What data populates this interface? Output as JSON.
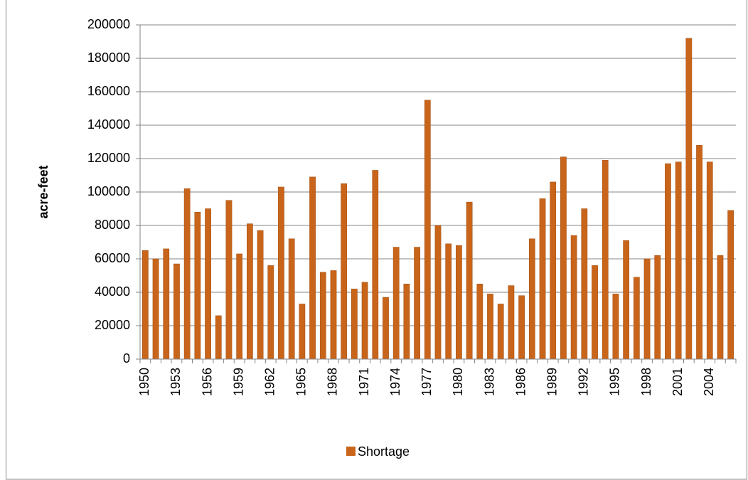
{
  "chart_data": {
    "type": "bar",
    "y_label": "acre-feet",
    "categories": [
      "1950",
      null,
      null,
      "1953",
      null,
      null,
      "1956",
      null,
      null,
      "1959",
      null,
      null,
      "1962",
      null,
      null,
      "1965",
      null,
      null,
      "1968",
      null,
      null,
      "1971",
      null,
      null,
      "1974",
      null,
      null,
      "1977",
      null,
      null,
      "1980",
      null,
      null,
      "1983",
      null,
      null,
      "1986",
      null,
      null,
      "1989",
      null,
      null,
      "1992",
      null,
      null,
      "1995",
      null,
      null,
      "1998",
      null,
      null,
      "2001",
      null,
      null,
      "2004",
      null,
      null
    ],
    "series": [
      {
        "name": "Shortage",
        "color": "#c8651b",
        "values": [
          65000,
          60000,
          66000,
          57000,
          102000,
          88000,
          90000,
          26000,
          95000,
          63000,
          81000,
          77000,
          56000,
          103000,
          72000,
          33000,
          109000,
          52000,
          53000,
          105000,
          42000,
          46000,
          113000,
          37000,
          67000,
          45000,
          67000,
          155000,
          80000,
          69000,
          68000,
          94000,
          45000,
          39000,
          33000,
          44000,
          38000,
          72000,
          96000,
          106000,
          121000,
          74000,
          90000,
          56000,
          119000,
          39000,
          71000,
          49000,
          60000,
          62000,
          117000,
          118000,
          192000,
          128000,
          118000,
          62000,
          89000
        ]
      }
    ],
    "ylim": [
      0,
      200000
    ],
    "yticks": [
      0,
      20000,
      40000,
      60000,
      80000,
      100000,
      120000,
      140000,
      160000,
      180000,
      200000
    ],
    "grid": true,
    "legend": "bottom"
  }
}
